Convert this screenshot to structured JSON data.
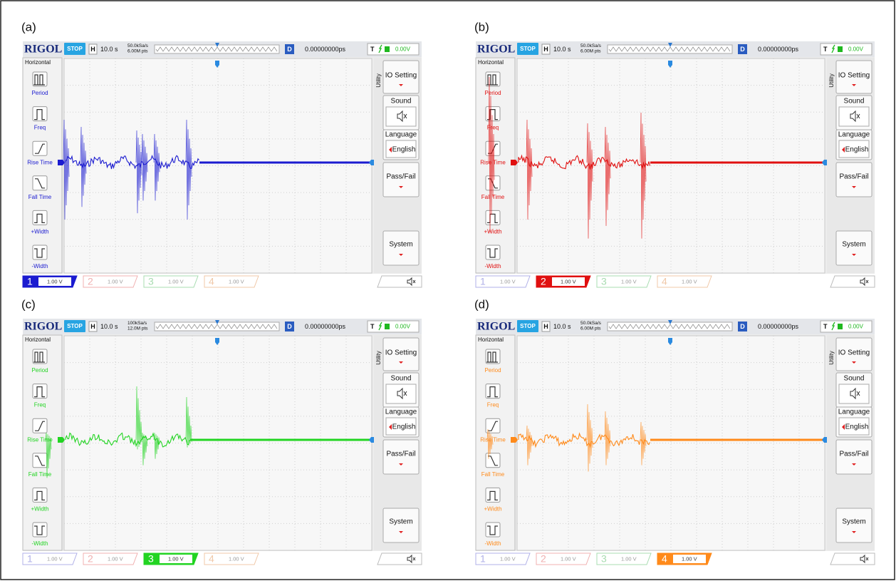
{
  "panels": [
    {
      "label": "(a)",
      "brand": "RIGOL",
      "status": "STOP",
      "timebase_label": "H",
      "timebase": "10.0 s",
      "sample_rate": "50.0kSa/s",
      "memory_depth": "6.00M pts",
      "delay_label": "D",
      "delay": "0.00000000ps",
      "trigger_label": "T",
      "trigger_level": "0.00V",
      "left_menu": {
        "title": "Horizontal",
        "items": [
          "Period",
          "Freq",
          "Rise Time",
          "Fall Time",
          "+Width",
          "-Width"
        ]
      },
      "right_menu": {
        "title": "Utility",
        "io": "IO Setting",
        "sound": "Sound",
        "language": "Language",
        "language_value": "English",
        "pass_fail": "Pass/Fail",
        "system": "System"
      },
      "active_channel": 1,
      "channels": [
        {
          "number": 1,
          "scale": "1.00 V",
          "color": "#1b1bd0"
        },
        {
          "number": 2,
          "scale": "1.00 V",
          "color": "#f0b0b0"
        },
        {
          "number": 3,
          "scale": "1.00 V",
          "color": "#a8dcb0"
        },
        {
          "number": 4,
          "scale": "1.00 V",
          "color": "#f0c8a8"
        }
      ]
    },
    {
      "label": "(b)",
      "brand": "RIGOL",
      "status": "STOP",
      "timebase_label": "H",
      "timebase": "10.0 s",
      "sample_rate": "50.0kSa/s",
      "memory_depth": "6.00M pts",
      "delay_label": "D",
      "delay": "0.00000000ps",
      "trigger_label": "T",
      "trigger_level": "0.00V",
      "left_menu": {
        "title": "Horizontal",
        "items": [
          "Period",
          "Freq",
          "Rise Time",
          "Fall Time",
          "+Width",
          "-Width"
        ]
      },
      "right_menu": {
        "title": "Utility",
        "io": "IO Setting",
        "sound": "Sound",
        "language": "Language",
        "language_value": "English",
        "pass_fail": "Pass/Fail",
        "system": "System"
      },
      "active_channel": 2,
      "channels": [
        {
          "number": 1,
          "scale": "1.00 V",
          "color": "#b0b0e8"
        },
        {
          "number": 2,
          "scale": "1.00 V",
          "color": "#e01010"
        },
        {
          "number": 3,
          "scale": "1.00 V",
          "color": "#a8dcb0"
        },
        {
          "number": 4,
          "scale": "1.00 V",
          "color": "#f0c8a8"
        }
      ]
    },
    {
      "label": "(c)",
      "brand": "RIGOL",
      "status": "STOP",
      "timebase_label": "H",
      "timebase": "10.0 s",
      "sample_rate": "100kSa/s",
      "memory_depth": "12.0M pts",
      "delay_label": "D",
      "delay": "0.00000000ps",
      "trigger_label": "T",
      "trigger_level": "0.00V",
      "left_menu": {
        "title": "Horizontal",
        "items": [
          "Period",
          "Freq",
          "Rise Time",
          "Fall Time",
          "+Width",
          "-Width"
        ]
      },
      "right_menu": {
        "title": "Utility",
        "io": "IO Setting",
        "sound": "Sound",
        "language": "Language",
        "language_value": "English",
        "pass_fail": "Pass/Fail",
        "system": "System"
      },
      "active_channel": 3,
      "channels": [
        {
          "number": 1,
          "scale": "1.00 V",
          "color": "#b0b0e8"
        },
        {
          "number": 2,
          "scale": "1.00 V",
          "color": "#f0b0b0"
        },
        {
          "number": 3,
          "scale": "1.00 V",
          "color": "#22d422"
        },
        {
          "number": 4,
          "scale": "1.00 V",
          "color": "#f0c8a8"
        }
      ]
    },
    {
      "label": "(d)",
      "brand": "RIGOL",
      "status": "STOP",
      "timebase_label": "H",
      "timebase": "10.0 s",
      "sample_rate": "50.0kSa/s",
      "memory_depth": "6.00M pts",
      "delay_label": "D",
      "delay": "0.00000000ps",
      "trigger_label": "T",
      "trigger_level": "0.00V",
      "left_menu": {
        "title": "Horizontal",
        "items": [
          "Period",
          "Freq",
          "Rise Time",
          "Fall Time",
          "+Width",
          "-Width"
        ]
      },
      "right_menu": {
        "title": "Utility",
        "io": "IO Setting",
        "sound": "Sound",
        "language": "Language",
        "language_value": "English",
        "pass_fail": "Pass/Fail",
        "system": "System"
      },
      "active_channel": 4,
      "channels": [
        {
          "number": 1,
          "scale": "1.00 V",
          "color": "#b0b0e8"
        },
        {
          "number": 2,
          "scale": "1.00 V",
          "color": "#f0b0b0"
        },
        {
          "number": 3,
          "scale": "1.00 V",
          "color": "#a8dcb0"
        },
        {
          "number": 4,
          "scale": "1.00 V",
          "color": "#ff8a1a"
        }
      ]
    }
  ]
}
